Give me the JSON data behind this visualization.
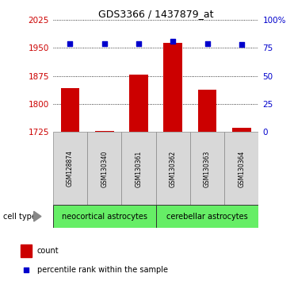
{
  "title": "GDS3366 / 1437879_at",
  "samples": [
    "GSM128874",
    "GSM130340",
    "GSM130361",
    "GSM130362",
    "GSM130363",
    "GSM130364"
  ],
  "bar_values": [
    1843,
    1728,
    1878,
    1963,
    1838,
    1737
  ],
  "percentile_values": [
    79,
    79,
    79,
    81,
    79,
    78
  ],
  "ymin": 1725,
  "ymax": 2025,
  "yticks_left": [
    1725,
    1800,
    1875,
    1950,
    2025
  ],
  "yticks_right": [
    0,
    25,
    50,
    75,
    100
  ],
  "bar_color": "#cc0000",
  "dot_color": "#0000cc",
  "bar_bottom": 1725,
  "groups": [
    {
      "label": "neocortical astrocytes",
      "color": "#66ee66"
    },
    {
      "label": "cerebellar astrocytes",
      "color": "#66ee66"
    }
  ],
  "cell_type_label": "cell type",
  "legend_count_label": "count",
  "legend_percentile_label": "percentile rank within the sample",
  "tick_label_color_left": "#cc0000",
  "tick_label_color_right": "#0000cc",
  "sample_bg_color": "#d8d8d8",
  "plot_bg": "#ffffff",
  "title_fontsize": 9,
  "tick_fontsize": 7.5,
  "sample_fontsize": 5.5,
  "group_fontsize": 7,
  "legend_fontsize": 7
}
